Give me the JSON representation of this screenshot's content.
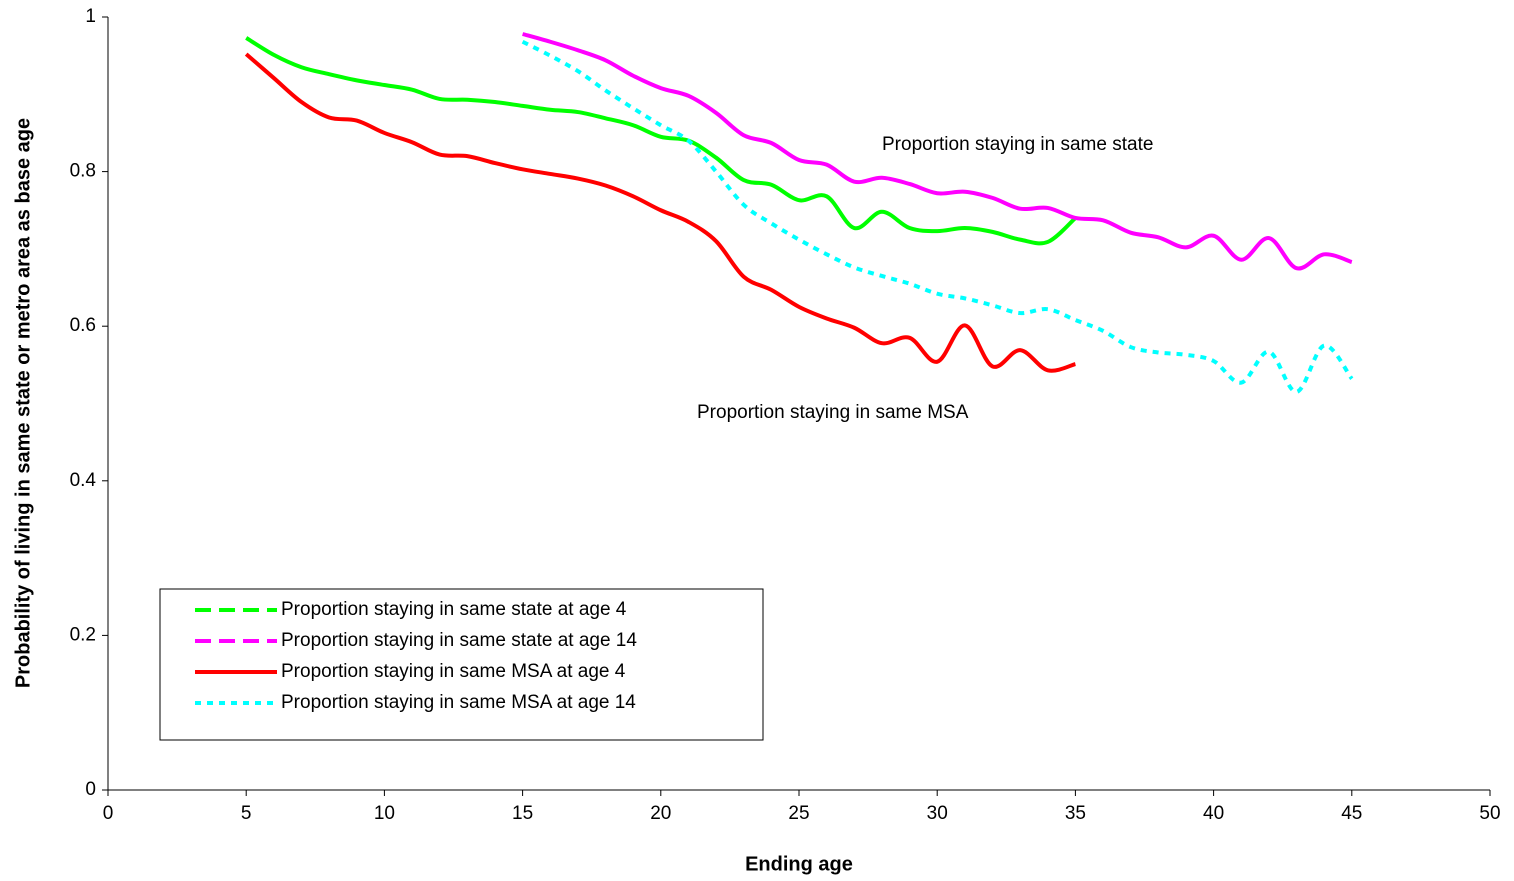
{
  "chart_data": {
    "type": "line",
    "x_label": "Ending age",
    "y_label": "Probability of living in same state or metro area as base age",
    "annotations": [
      "Proportion staying in same state",
      "Proportion staying in same MSA"
    ],
    "xlim": [
      0,
      50
    ],
    "xticks": [
      0,
      5,
      10,
      15,
      20,
      25,
      30,
      35,
      40,
      45,
      50
    ],
    "ylim": [
      0,
      1
    ],
    "yticks": [
      0,
      0.2,
      0.4,
      0.6,
      0.8,
      1
    ],
    "grid": false,
    "legend": "lower left",
    "series": [
      {
        "name": "Proportion staying in same state at age 4",
        "color": "#00ff00",
        "style": "solid",
        "legend_style": "dashed",
        "x": [
          5,
          6,
          7,
          8,
          9,
          10,
          11,
          12,
          13,
          14,
          15,
          16,
          17,
          18,
          19,
          20,
          21,
          22,
          23,
          24,
          25,
          26,
          27,
          28,
          29,
          30,
          31,
          32,
          33,
          34,
          35
        ],
        "values": [
          0.973,
          0.951,
          0.935,
          0.926,
          0.918,
          0.912,
          0.906,
          0.894,
          0.893,
          0.89,
          0.885,
          0.88,
          0.877,
          0.869,
          0.86,
          0.845,
          0.84,
          0.818,
          0.789,
          0.783,
          0.763,
          0.768,
          0.727,
          0.748,
          0.727,
          0.723,
          0.727,
          0.722,
          0.712,
          0.709,
          0.74
        ]
      },
      {
        "name": "Proportion staying in same state at age 14",
        "color": "#ff00ff",
        "style": "solid",
        "legend_style": "dashed",
        "x": [
          15,
          16,
          17,
          18,
          19,
          20,
          21,
          22,
          23,
          24,
          25,
          26,
          27,
          28,
          29,
          30,
          31,
          32,
          33,
          34,
          35,
          36,
          37,
          38,
          39,
          40,
          41,
          42,
          43,
          44,
          45
        ],
        "values": [
          0.978,
          0.968,
          0.957,
          0.944,
          0.924,
          0.908,
          0.898,
          0.876,
          0.847,
          0.837,
          0.815,
          0.809,
          0.787,
          0.792,
          0.784,
          0.772,
          0.774,
          0.766,
          0.752,
          0.753,
          0.74,
          0.737,
          0.721,
          0.715,
          0.702,
          0.717,
          0.686,
          0.714,
          0.675,
          0.693,
          0.683
        ]
      },
      {
        "name": "Proportion staying in same MSA at age 4",
        "color": "#ff0000",
        "style": "solid",
        "legend_style": "solid",
        "x": [
          5,
          6,
          7,
          8,
          9,
          10,
          11,
          12,
          13,
          14,
          15,
          16,
          17,
          18,
          19,
          20,
          21,
          22,
          23,
          24,
          25,
          26,
          27,
          28,
          29,
          30,
          31,
          32,
          33,
          34,
          35
        ],
        "values": [
          0.952,
          0.921,
          0.89,
          0.87,
          0.866,
          0.85,
          0.838,
          0.822,
          0.82,
          0.811,
          0.803,
          0.797,
          0.791,
          0.782,
          0.768,
          0.75,
          0.735,
          0.71,
          0.664,
          0.647,
          0.625,
          0.61,
          0.598,
          0.578,
          0.585,
          0.554,
          0.601,
          0.548,
          0.569,
          0.543,
          0.551
        ]
      },
      {
        "name": "Proportion staying in same MSA at age 14",
        "color": "#00ffff",
        "style": "dotted",
        "legend_style": "dotted",
        "x": [
          15,
          16,
          17,
          18,
          19,
          20,
          21,
          22,
          23,
          24,
          25,
          26,
          27,
          28,
          29,
          30,
          31,
          32,
          33,
          34,
          35,
          36,
          37,
          38,
          39,
          40,
          41,
          42,
          43,
          44,
          45
        ],
        "values": [
          0.968,
          0.95,
          0.93,
          0.905,
          0.882,
          0.86,
          0.84,
          0.8,
          0.757,
          0.733,
          0.712,
          0.693,
          0.676,
          0.665,
          0.655,
          0.642,
          0.636,
          0.627,
          0.617,
          0.622,
          0.608,
          0.594,
          0.573,
          0.566,
          0.563,
          0.555,
          0.527,
          0.567,
          0.515,
          0.575,
          0.532
        ]
      }
    ]
  }
}
